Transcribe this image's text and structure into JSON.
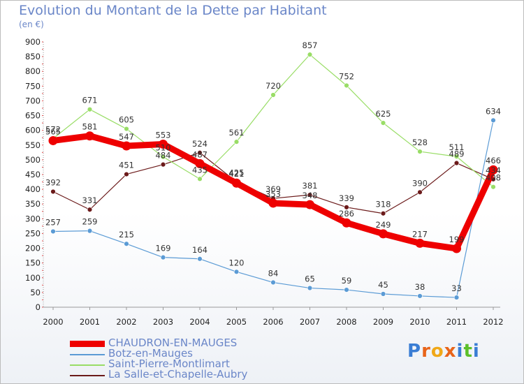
{
  "header": {
    "title": "Evolution du Montant de la Dette par Habitant",
    "unit": "(en €)"
  },
  "logo": {
    "text": "Proxiti"
  },
  "chart_data": {
    "type": "line",
    "title": "Evolution du Montant de la Dette par Habitant",
    "subtitle": "(en €)",
    "xlabel": "",
    "ylabel": "",
    "ylim": [
      0,
      900
    ],
    "yticks": [
      0,
      50,
      100,
      150,
      200,
      250,
      300,
      350,
      400,
      450,
      500,
      550,
      600,
      650,
      700,
      750,
      800,
      850,
      900
    ],
    "grid": false,
    "legend_position": "bottom-left",
    "x": [
      "2000",
      "2001",
      "2002",
      "2003",
      "2004",
      "2005",
      "2006",
      "2007",
      "2008",
      "2009",
      "2010",
      "2011",
      "2012"
    ],
    "series": [
      {
        "name": "La Salle-et-Chapelle-Aubry",
        "color": "#6b1a1a",
        "values": [
          392,
          331,
          451,
          484,
          524,
          425,
          369,
          381,
          339,
          318,
          390,
          489,
          434
        ]
      },
      {
        "name": "Saint-Pierre-Montlimart",
        "color": "#99dd66",
        "values": [
          572,
          671,
          605,
          510,
          435,
          561,
          720,
          857,
          752,
          625,
          528,
          511,
          408
        ]
      },
      {
        "name": "Botz-en-Mauges",
        "color": "#5b9bd5",
        "values": [
          257,
          259,
          215,
          169,
          164,
          120,
          84,
          65,
          59,
          45,
          38,
          33,
          634
        ]
      },
      {
        "name": "CHAUDRON-EN-MAUGES",
        "color": "#ee0000",
        "values": [
          565,
          581,
          547,
          553,
          487,
          421,
          353,
          348,
          286,
          249,
          217,
          199,
          466
        ]
      }
    ],
    "legend": [
      {
        "name": "CHAUDRON-EN-MAUGES",
        "color": "#ee0000"
      },
      {
        "name": "Botz-en-Mauges",
        "color": "#5b9bd5"
      },
      {
        "name": "Saint-Pierre-Montlimart",
        "color": "#99dd66"
      },
      {
        "name": "La Salle-et-Chapelle-Aubry",
        "color": "#6b1a1a"
      }
    ]
  }
}
